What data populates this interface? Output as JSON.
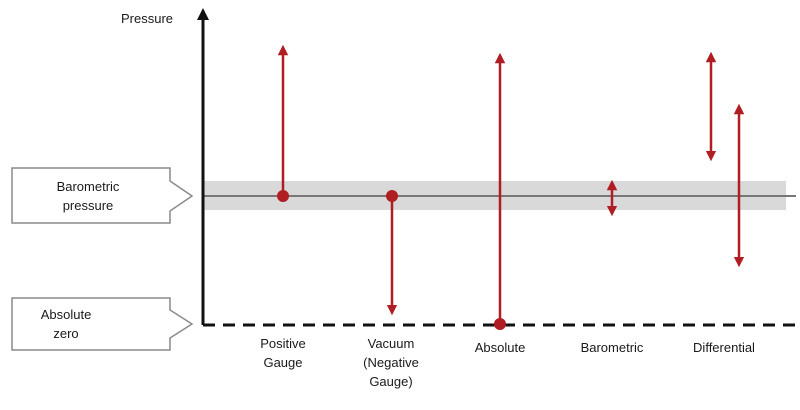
{
  "y_axis_label": "Pressure",
  "reference_levels": {
    "barometric": [
      "Barometric",
      "pressure"
    ],
    "absolute_zero": [
      "Absolute",
      "zero"
    ]
  },
  "categories": [
    {
      "key": "positive_gauge",
      "label": [
        "Positive",
        "Gauge"
      ]
    },
    {
      "key": "vacuum",
      "label": [
        "Vacuum",
        "(Negative",
        "Gauge)"
      ]
    },
    {
      "key": "absolute",
      "label": [
        "Absolute"
      ]
    },
    {
      "key": "barometric",
      "label": [
        "Barometric"
      ]
    },
    {
      "key": "differential",
      "label": [
        "Differential"
      ]
    }
  ],
  "colors": {
    "arrow": "#b01e23",
    "axis": "#111111",
    "band": "#d9d9d9",
    "baseline": "#777777",
    "callout_border": "#8a8a8a"
  }
}
